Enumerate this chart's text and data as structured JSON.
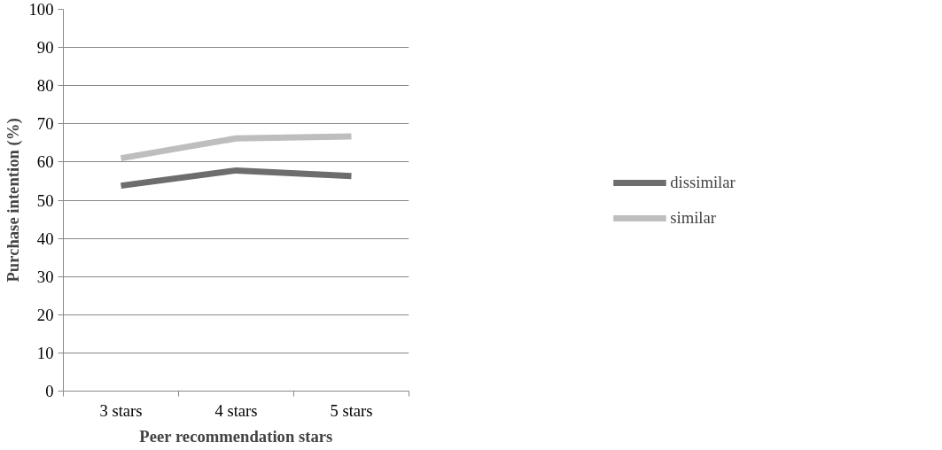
{
  "chart_data": {
    "type": "line",
    "xlabel": "Peer recommendation stars",
    "ylabel": "Purchase intention (%)",
    "categories": [
      "3 stars",
      "4 stars",
      "5 stars"
    ],
    "series": [
      {
        "name": "dissimilar",
        "color": "#6d6d6d",
        "values": [
          53.8,
          57.8,
          56.3
        ]
      },
      {
        "name": "similar",
        "color": "#bebebe",
        "values": [
          61.0,
          66.2,
          66.7
        ]
      }
    ],
    "ylim": [
      0,
      100
    ],
    "yticks": [
      0,
      10,
      20,
      30,
      40,
      50,
      60,
      70,
      80,
      90,
      100
    ],
    "grid": "y",
    "legend": "right",
    "marker": "none",
    "line_style": "solid"
  }
}
